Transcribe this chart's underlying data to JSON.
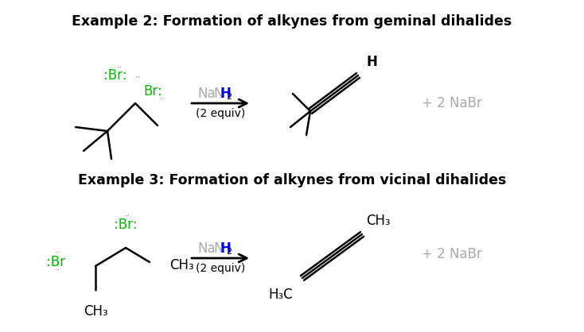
{
  "title1": "Example 2: Formation of alkynes from geminal dihalides",
  "title2": "Example 3: Formation of alkynes from vicinal dihalides",
  "reagent_sub": "(2 equiv)",
  "byproduct": "+ 2 NaBr",
  "green_color": "#00BB00",
  "blue_color": "#0000FF",
  "gray_color": "#AAAAAA",
  "black_color": "#000000",
  "bg_color": "#FFFFFF",
  "title_fontsize": 12.5,
  "label_fontsize": 12,
  "small_fontsize": 10
}
